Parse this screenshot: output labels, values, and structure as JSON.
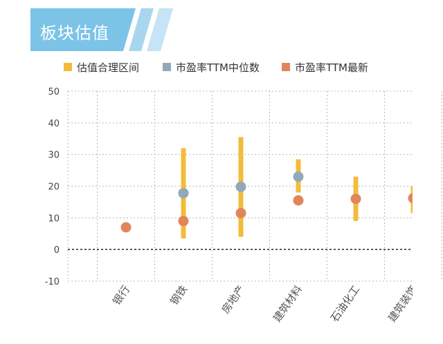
{
  "header": {
    "title": "板块估值"
  },
  "colors": {
    "banner": "#7cc3e8",
    "banner_stripe": "#c5e4f5",
    "range": "#f2bc3a",
    "median": "#93a9b9",
    "latest": "#e0875a",
    "grid": "#b8b8b8",
    "zero_line": "#222222"
  },
  "chart_data": {
    "type": "scatter",
    "categories": [
      "银行",
      "钢铁",
      "房地产",
      "建筑材料",
      "石油化工",
      "建筑装饰"
    ],
    "ylim": [
      -10,
      50
    ],
    "yticks": [
      50,
      40,
      30,
      20,
      10,
      0,
      -10
    ],
    "grid": true,
    "legend_position": "top",
    "series": [
      {
        "name": "估值合理区间",
        "kind": "range",
        "low": [
          null,
          3.5,
          4,
          18,
          9,
          11.5
        ],
        "high": [
          null,
          32,
          35.5,
          28.5,
          23,
          20
        ]
      },
      {
        "name": "市盈率TTM中位数",
        "kind": "point",
        "values": [
          null,
          17.8,
          19.8,
          23,
          null,
          null
        ]
      },
      {
        "name": "市盈率TTM最新",
        "kind": "point",
        "values": [
          7,
          9,
          11.5,
          15.5,
          16,
          16.2
        ]
      }
    ]
  }
}
